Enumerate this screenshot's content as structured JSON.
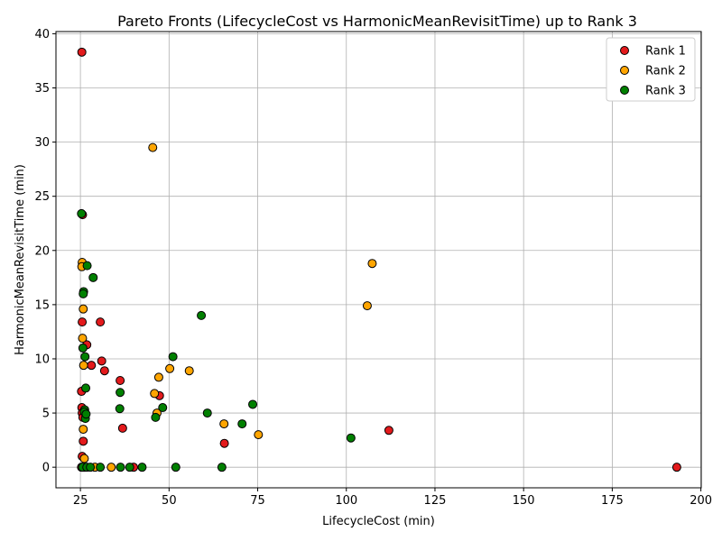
{
  "chart_data": {
    "type": "scatter",
    "title": "Pareto Fronts (LifecycleCost vs HarmonicMeanRevisitTime) up to Rank 3",
    "xlabel": "LifecycleCost (min)",
    "ylabel": "HarmonicMeanRevisitTime (min)",
    "xlim": [
      18.1,
      200.1
    ],
    "ylim": [
      -1.9,
      40.2
    ],
    "xticks": [
      25,
      50,
      75,
      100,
      125,
      150,
      175,
      200
    ],
    "yticks": [
      0,
      5,
      10,
      15,
      20,
      25,
      30,
      35,
      40
    ],
    "xtick_labels": [
      "25",
      "50",
      "75",
      "100",
      "125",
      "150",
      "175",
      "200"
    ],
    "ytick_labels": [
      "0",
      "5",
      "10",
      "15",
      "20",
      "25",
      "30",
      "35",
      "40"
    ],
    "grid": true,
    "legend_position": "top-right",
    "series": [
      {
        "name": "Rank 1",
        "color": "#e31a1c",
        "points": [
          [
            25.4,
            38.3
          ],
          [
            25.6,
            23.3
          ],
          [
            25.5,
            13.4
          ],
          [
            26.8,
            11.3
          ],
          [
            25.3,
            7.0
          ],
          [
            25.4,
            5.5
          ],
          [
            25.5,
            5.0
          ],
          [
            25.7,
            4.6
          ],
          [
            25.8,
            2.4
          ],
          [
            25.5,
            1.0
          ],
          [
            25.3,
            0.0
          ],
          [
            26.0,
            0.0
          ],
          [
            28.1,
            9.4
          ],
          [
            30.6,
            13.4
          ],
          [
            31.0,
            9.8
          ],
          [
            31.8,
            8.9
          ],
          [
            36.2,
            8.0
          ],
          [
            36.9,
            3.6
          ],
          [
            40.0,
            0.0
          ],
          [
            47.3,
            6.6
          ],
          [
            65.6,
            2.2
          ],
          [
            112.0,
            3.4
          ],
          [
            193.2,
            0.0
          ]
        ]
      },
      {
        "name": "Rank 2",
        "color": "#ffa500",
        "points": [
          [
            25.5,
            18.9
          ],
          [
            25.4,
            18.5
          ],
          [
            25.8,
            14.6
          ],
          [
            25.6,
            11.9
          ],
          [
            25.9,
            9.4
          ],
          [
            25.8,
            3.5
          ],
          [
            26.1,
            0.8
          ],
          [
            26.3,
            0.0
          ],
          [
            29.1,
            0.0
          ],
          [
            33.7,
            0.0
          ],
          [
            45.4,
            29.5
          ],
          [
            45.9,
            6.8
          ],
          [
            46.6,
            5.0
          ],
          [
            47.1,
            8.3
          ],
          [
            50.2,
            9.1
          ],
          [
            55.7,
            8.9
          ],
          [
            65.5,
            4.0
          ],
          [
            75.2,
            3.0
          ],
          [
            105.9,
            14.9
          ],
          [
            107.3,
            18.8
          ]
        ]
      },
      {
        "name": "Rank 3",
        "color": "#008000",
        "points": [
          [
            25.3,
            23.4
          ],
          [
            25.9,
            16.2
          ],
          [
            25.8,
            16.0
          ],
          [
            25.7,
            11.0
          ],
          [
            26.3,
            10.2
          ],
          [
            26.5,
            7.3
          ],
          [
            26.2,
            5.3
          ],
          [
            26.1,
            5.1
          ],
          [
            26.4,
            4.5
          ],
          [
            26.6,
            4.9
          ],
          [
            25.6,
            0.0
          ],
          [
            26.8,
            0.0
          ],
          [
            27.8,
            0.0
          ],
          [
            30.6,
            0.0
          ],
          [
            26.9,
            18.6
          ],
          [
            28.6,
            17.5
          ],
          [
            36.2,
            6.9
          ],
          [
            36.1,
            5.4
          ],
          [
            36.3,
            0.0
          ],
          [
            38.9,
            0.0
          ],
          [
            42.4,
            0.0
          ],
          [
            46.2,
            4.6
          ],
          [
            48.2,
            5.5
          ],
          [
            51.1,
            10.2
          ],
          [
            51.9,
            0.0
          ],
          [
            59.1,
            14.0
          ],
          [
            60.8,
            5.0
          ],
          [
            64.9,
            0.0
          ],
          [
            70.6,
            4.0
          ],
          [
            73.6,
            5.8
          ],
          [
            101.3,
            2.7
          ]
        ]
      }
    ]
  }
}
